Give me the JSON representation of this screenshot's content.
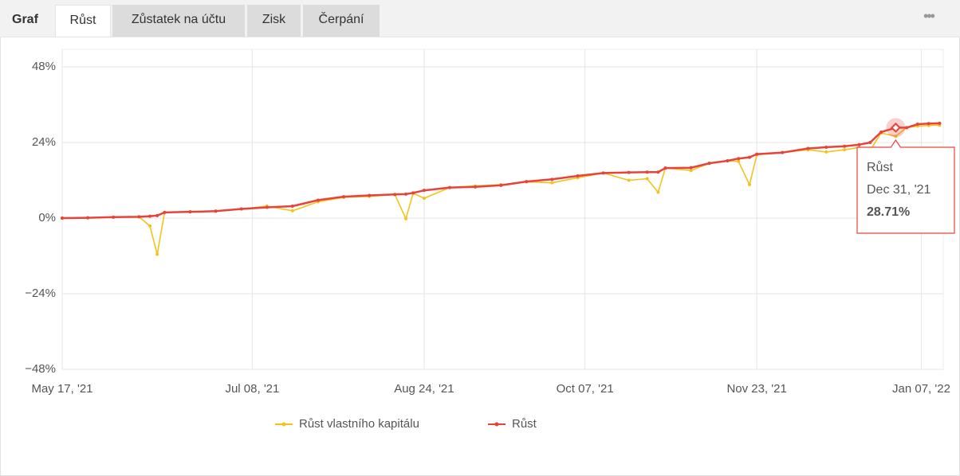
{
  "tabs": {
    "label": "Graf",
    "items": [
      "Růst",
      "Zůstatek na účtu",
      "Zisk",
      "Čerpání"
    ]
  },
  "chart_data": {
    "type": "line",
    "x": [
      "2021-05-17",
      "2021-05-24",
      "2021-05-31",
      "2021-06-07",
      "2021-06-10",
      "2021-06-12",
      "2021-06-14",
      "2021-06-21",
      "2021-06-28",
      "2021-07-05",
      "2021-07-12",
      "2021-07-19",
      "2021-07-26",
      "2021-08-02",
      "2021-08-09",
      "2021-08-16",
      "2021-08-19",
      "2021-08-21",
      "2021-08-24",
      "2021-08-31",
      "2021-09-07",
      "2021-09-14",
      "2021-09-21",
      "2021-09-28",
      "2021-10-05",
      "2021-10-12",
      "2021-10-19",
      "2021-10-24",
      "2021-10-27",
      "2021-10-29",
      "2021-11-05",
      "2021-11-10",
      "2021-11-15",
      "2021-11-18",
      "2021-11-21",
      "2021-11-23",
      "2021-11-30",
      "2021-12-07",
      "2021-12-12",
      "2021-12-17",
      "2021-12-21",
      "2021-12-24",
      "2021-12-27",
      "2021-12-31",
      "2022-01-03",
      "2022-01-06",
      "2022-01-09",
      "2022-01-12"
    ],
    "series": [
      {
        "name": "Růst vlastního kapitálu",
        "color": "#f5c21b",
        "values": [
          0,
          0.1,
          0.3,
          0.4,
          -2.5,
          -11.5,
          1.8,
          2.0,
          2.2,
          2.9,
          3.8,
          2.3,
          5.2,
          6.6,
          6.9,
          7.5,
          -0.2,
          7.9,
          6.3,
          9.7,
          10.2,
          10.6,
          11.5,
          11.2,
          12.8,
          14.3,
          12.0,
          12.5,
          8.2,
          15.9,
          15.1,
          17.4,
          18.2,
          18.0,
          10.6,
          20.1,
          20.8,
          21.7,
          21.0,
          21.7,
          22.4,
          21.5,
          27.0,
          26.0,
          28.7,
          29.2,
          29.4,
          29.5
        ]
      },
      {
        "name": "Růst",
        "color": "#e8433a",
        "values": [
          0,
          0.1,
          0.3,
          0.4,
          0.6,
          0.8,
          1.8,
          2.0,
          2.2,
          2.9,
          3.4,
          3.8,
          5.7,
          6.8,
          7.2,
          7.5,
          7.6,
          8.0,
          8.8,
          9.7,
          9.9,
          10.4,
          11.6,
          12.3,
          13.4,
          14.3,
          14.5,
          14.6,
          14.6,
          15.9,
          16.0,
          17.4,
          18.2,
          18.9,
          19.3,
          20.3,
          20.8,
          22.1,
          22.5,
          22.8,
          23.3,
          24.0,
          27.3,
          28.71,
          28.7,
          29.8,
          30.0,
          30.1
        ]
      }
    ],
    "xlim": [
      "2021-05-17",
      "2022-01-13"
    ],
    "xticks": [
      {
        "value": "2021-05-17",
        "label": "May 17, '21"
      },
      {
        "value": "2021-07-08",
        "label": "Jul 08, '21"
      },
      {
        "value": "2021-08-24",
        "label": "Aug 24, '21"
      },
      {
        "value": "2021-10-07",
        "label": "Oct 07, '21"
      },
      {
        "value": "2021-11-23",
        "label": "Nov 23, '21"
      },
      {
        "value": "2022-01-07",
        "label": "Jan 07, '22"
      }
    ],
    "ylim": [
      -48,
      48
    ],
    "yticks": [
      {
        "value": -48,
        "label": "−48%"
      },
      {
        "value": -24,
        "label": "−24%"
      },
      {
        "value": 0,
        "label": "0%"
      },
      {
        "value": 24,
        "label": "24%"
      },
      {
        "value": 48,
        "label": "48%"
      }
    ],
    "grid": true,
    "legend": "bottom",
    "tooltip": {
      "x": "2021-12-31",
      "x_label": "Dec 31, '21",
      "value": 28.71,
      "value_label": "28.71%"
    }
  }
}
